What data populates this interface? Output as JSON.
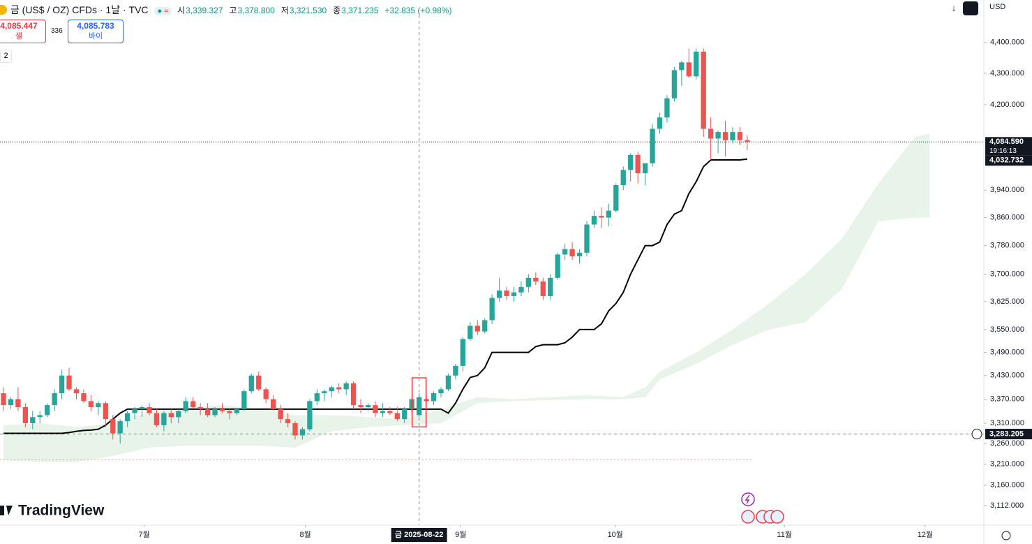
{
  "header": {
    "symbol": "금 (US$ / OZ) CFDs · 1날 · TVC",
    "open_label": "시",
    "open": "3,339.327",
    "high_label": "고",
    "high": "3,378.800",
    "low_label": "저",
    "low": "3,321.530",
    "close_label": "종",
    "close": "3,371.235",
    "change": "+32.835 (+0.98%)",
    "currency": "USD"
  },
  "trade": {
    "sell_price": "4,085.447",
    "sell_label": "셀",
    "spread": "336",
    "buy_price": "4,085.783",
    "buy_label": "바이",
    "indicator_count": "2"
  },
  "brand": "TradingView",
  "chart_data": {
    "type": "candlestick",
    "log_scale": true,
    "grid": false,
    "up_color": "#26a69a",
    "down_color": "#ef5350",
    "ohlc": [
      [
        3385,
        3400,
        3340,
        3355
      ],
      [
        3355,
        3375,
        3345,
        3370
      ],
      [
        3370,
        3400,
        3340,
        3350
      ],
      [
        3350,
        3360,
        3300,
        3310
      ],
      [
        3310,
        3340,
        3295,
        3325
      ],
      [
        3325,
        3340,
        3310,
        3330
      ],
      [
        3330,
        3360,
        3325,
        3355
      ],
      [
        3355,
        3395,
        3340,
        3385
      ],
      [
        3385,
        3445,
        3370,
        3430
      ],
      [
        3430,
        3450,
        3390,
        3395
      ],
      [
        3395,
        3400,
        3370,
        3385
      ],
      [
        3385,
        3395,
        3360,
        3365
      ],
      [
        3365,
        3380,
        3340,
        3350
      ],
      [
        3350,
        3365,
        3330,
        3360
      ],
      [
        3360,
        3365,
        3300,
        3320
      ],
      [
        3320,
        3330,
        3270,
        3285
      ],
      [
        3285,
        3320,
        3260,
        3315
      ],
      [
        3315,
        3340,
        3300,
        3335
      ],
      [
        3335,
        3350,
        3320,
        3345
      ],
      [
        3345,
        3355,
        3325,
        3350
      ],
      [
        3350,
        3360,
        3330,
        3335
      ],
      [
        3335,
        3345,
        3300,
        3305
      ],
      [
        3305,
        3340,
        3290,
        3335
      ],
      [
        3335,
        3345,
        3310,
        3325
      ],
      [
        3325,
        3345,
        3310,
        3340
      ],
      [
        3340,
        3375,
        3335,
        3365
      ],
      [
        3365,
        3375,
        3345,
        3350
      ],
      [
        3350,
        3360,
        3330,
        3345
      ],
      [
        3345,
        3360,
        3325,
        3330
      ],
      [
        3330,
        3350,
        3325,
        3345
      ],
      [
        3345,
        3360,
        3335,
        3340
      ],
      [
        3340,
        3345,
        3320,
        3335
      ],
      [
        3335,
        3345,
        3330,
        3345
      ],
      [
        3345,
        3395,
        3340,
        3390
      ],
      [
        3390,
        3435,
        3385,
        3430
      ],
      [
        3430,
        3440,
        3390,
        3395
      ],
      [
        3395,
        3400,
        3360,
        3370
      ],
      [
        3370,
        3380,
        3340,
        3345
      ],
      [
        3345,
        3355,
        3310,
        3320
      ],
      [
        3320,
        3335,
        3300,
        3310
      ],
      [
        3310,
        3315,
        3270,
        3280
      ],
      [
        3280,
        3300,
        3270,
        3295
      ],
      [
        3295,
        3370,
        3290,
        3365
      ],
      [
        3365,
        3395,
        3355,
        3385
      ],
      [
        3385,
        3395,
        3365,
        3390
      ],
      [
        3390,
        3405,
        3375,
        3400
      ],
      [
        3400,
        3410,
        3385,
        3395
      ],
      [
        3395,
        3415,
        3380,
        3410
      ],
      [
        3410,
        3415,
        3345,
        3355
      ],
      [
        3355,
        3370,
        3335,
        3350
      ],
      [
        3350,
        3360,
        3340,
        3355
      ],
      [
        3355,
        3365,
        3325,
        3335
      ],
      [
        3335,
        3360,
        3325,
        3340
      ],
      [
        3340,
        3350,
        3330,
        3335
      ],
      [
        3335,
        3350,
        3315,
        3320
      ],
      [
        3320,
        3350,
        3310,
        3345
      ],
      [
        3345,
        3375,
        3330,
        3370
      ],
      [
        3330,
        3385,
        3325,
        3375
      ],
      [
        3370,
        3380,
        3360,
        3365
      ],
      [
        3365,
        3390,
        3355,
        3385
      ],
      [
        3385,
        3400,
        3375,
        3395
      ],
      [
        3395,
        3435,
        3390,
        3430
      ],
      [
        3430,
        3460,
        3420,
        3455
      ],
      [
        3455,
        3530,
        3440,
        3525
      ],
      [
        3525,
        3570,
        3520,
        3560
      ],
      [
        3560,
        3575,
        3535,
        3545
      ],
      [
        3545,
        3580,
        3540,
        3575
      ],
      [
        3575,
        3645,
        3565,
        3635
      ],
      [
        3635,
        3690,
        3625,
        3655
      ],
      [
        3655,
        3665,
        3630,
        3640
      ],
      [
        3640,
        3665,
        3625,
        3650
      ],
      [
        3650,
        3680,
        3640,
        3665
      ],
      [
        3665,
        3700,
        3650,
        3690
      ],
      [
        3690,
        3705,
        3670,
        3680
      ],
      [
        3680,
        3690,
        3630,
        3640
      ],
      [
        3640,
        3700,
        3630,
        3690
      ],
      [
        3690,
        3760,
        3685,
        3755
      ],
      [
        3755,
        3785,
        3740,
        3770
      ],
      [
        3770,
        3790,
        3740,
        3750
      ],
      [
        3750,
        3770,
        3730,
        3760
      ],
      [
        3760,
        3850,
        3750,
        3840
      ],
      [
        3840,
        3880,
        3830,
        3865
      ],
      [
        3865,
        3890,
        3830,
        3860
      ],
      [
        3860,
        3900,
        3835,
        3880
      ],
      [
        3880,
        3960,
        3875,
        3955
      ],
      [
        3955,
        4010,
        3940,
        4000
      ],
      [
        4000,
        4050,
        3965,
        4045
      ],
      [
        4045,
        4055,
        3960,
        3990
      ],
      [
        3990,
        4020,
        3955,
        4020
      ],
      [
        4020,
        4140,
        4010,
        4125
      ],
      [
        4125,
        4175,
        4110,
        4160
      ],
      [
        4160,
        4230,
        4145,
        4220
      ],
      [
        4220,
        4320,
        4210,
        4310
      ],
      [
        4310,
        4340,
        4260,
        4335
      ],
      [
        4335,
        4380,
        4285,
        4290
      ],
      [
        4290,
        4380,
        4280,
        4370
      ],
      [
        4370,
        4380,
        4100,
        4125
      ],
      [
        4125,
        4160,
        4030,
        4095
      ],
      [
        4095,
        4120,
        4050,
        4115
      ],
      [
        4115,
        4150,
        4040,
        4090
      ],
      [
        4090,
        4130,
        4080,
        4115
      ],
      [
        4115,
        4130,
        4075,
        4090
      ],
      [
        4090,
        4105,
        4060,
        4085
      ]
    ],
    "line": {
      "color": "#000000",
      "values": [
        3285,
        3285,
        3285,
        3285,
        3285,
        3285,
        3285,
        3285,
        3285,
        3287,
        3290,
        3292,
        3293,
        3295,
        3305,
        3320,
        3335,
        3345,
        3345,
        3345,
        3345,
        3345,
        3345,
        3345,
        3345,
        3345,
        3345,
        3345,
        3345,
        3345,
        3345,
        3345,
        3345,
        3345,
        3345,
        3345,
        3345,
        3345,
        3345,
        3345,
        3345,
        3345,
        3345,
        3345,
        3345,
        3345,
        3345,
        3345,
        3345,
        3345,
        3345,
        3345,
        3345,
        3345,
        3345,
        3345,
        3345,
        3345,
        3345,
        3345,
        3345,
        3335,
        3360,
        3395,
        3425,
        3430,
        3450,
        3490,
        3490,
        3490,
        3490,
        3490,
        3490,
        3505,
        3510,
        3510,
        3510,
        3515,
        3530,
        3550,
        3550,
        3550,
        3565,
        3600,
        3620,
        3650,
        3700,
        3740,
        3780,
        3780,
        3790,
        3840,
        3870,
        3880,
        3930,
        3965,
        4010,
        4030,
        4030,
        4030,
        4030,
        4030,
        4032.732
      ]
    },
    "line_last": {
      "value": 4032.732,
      "label": "4,032.732"
    },
    "cloud": {
      "color": "#43a047",
      "x": [
        0,
        5,
        10,
        15,
        20,
        25,
        30,
        35,
        40,
        45,
        50,
        55,
        60,
        65,
        70,
        75,
        80,
        85,
        88,
        90,
        95,
        100,
        105,
        110,
        115,
        120,
        125,
        127
      ],
      "upper": [
        3305,
        3310,
        3300,
        3310,
        3340,
        3350,
        3355,
        3345,
        3330,
        3330,
        3325,
        3320,
        3345,
        3375,
        3370,
        3375,
        3380,
        3375,
        3400,
        3440,
        3490,
        3550,
        3620,
        3700,
        3800,
        3960,
        4100,
        4110
      ],
      "lower": [
        3220,
        3215,
        3215,
        3230,
        3250,
        3255,
        3255,
        3255,
        3250,
        3290,
        3300,
        3305,
        3310,
        3360,
        3365,
        3368,
        3370,
        3370,
        3375,
        3420,
        3460,
        3510,
        3550,
        3570,
        3660,
        3850,
        3860,
        3860
      ]
    },
    "current_price": {
      "value": 4084.59,
      "label": "4,084.590"
    },
    "countdown": "19:16:13",
    "crosshair": {
      "x": 57,
      "date": "금 2025-08-22",
      "price": {
        "value": 3283.205,
        "label": "3,283.205"
      }
    },
    "xlim": [
      -0.478,
      134.45
    ],
    "xticks": [
      {
        "value": 19.3,
        "label": "7월"
      },
      {
        "value": 41.4,
        "label": "8월"
      },
      {
        "value": 62.7,
        "label": "9월"
      },
      {
        "value": 83.9,
        "label": "10월"
      },
      {
        "value": 107.1,
        "label": "11월"
      },
      {
        "value": 126.4,
        "label": "12월"
      }
    ],
    "ylim": [
      3067,
      4542
    ],
    "yticks": [
      {
        "value": 4400,
        "label": "4,400.000"
      },
      {
        "value": 4300,
        "label": "4,300.000"
      },
      {
        "value": 4200,
        "label": "4,200.000"
      },
      {
        "value": 3940,
        "label": "3,940.000"
      },
      {
        "value": 3860,
        "label": "3,860.000"
      },
      {
        "value": 3780,
        "label": "3,780.000"
      },
      {
        "value": 3700,
        "label": "3,700.000"
      },
      {
        "value": 3625,
        "label": "3,625.000"
      },
      {
        "value": 3550,
        "label": "3,550.000"
      },
      {
        "value": 3490,
        "label": "3,490.000"
      },
      {
        "value": 3430,
        "label": "3,430.000"
      },
      {
        "value": 3370,
        "label": "3,370.000"
      },
      {
        "value": 3310,
        "label": "3,310.000"
      },
      {
        "value": 3260,
        "label": "3,260.000"
      },
      {
        "value": 3210,
        "label": "3,210.000"
      },
      {
        "value": 3160,
        "label": "3,160.000"
      },
      {
        "value": 3112,
        "label": "3,112.000"
      }
    ]
  }
}
